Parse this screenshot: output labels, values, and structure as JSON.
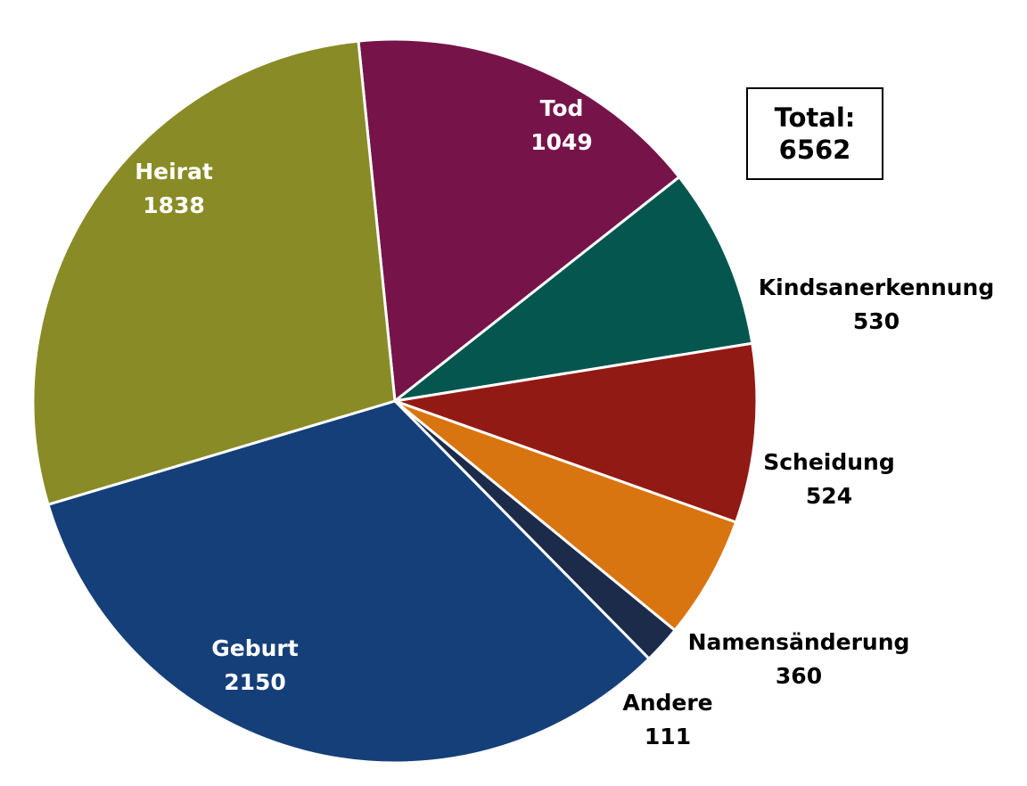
{
  "chart_data": {
    "type": "pie",
    "total_label": "Total:",
    "total_value": "6562",
    "slices": [
      {
        "label": "Tod",
        "value": 1049,
        "color": "#76144a",
        "label_color": "#ffffff",
        "label_placement": "inside"
      },
      {
        "label": "Kindsanerkennung",
        "value": 530,
        "color": "#04564f",
        "label_color": "#000000",
        "label_placement": "outside"
      },
      {
        "label": "Scheidung",
        "value": 524,
        "color": "#921a14",
        "label_color": "#000000",
        "label_placement": "outside"
      },
      {
        "label": "Namensänderung",
        "value": 360,
        "color": "#d97510",
        "label_color": "#000000",
        "label_placement": "outside"
      },
      {
        "label": "Andere",
        "value": 111,
        "color": "#1c2b4a",
        "label_color": "#000000",
        "label_placement": "outside"
      },
      {
        "label": "Geburt",
        "value": 2150,
        "color": "#153f79",
        "label_color": "#ffffff",
        "label_placement": "inside"
      },
      {
        "label": "Heirat",
        "value": 1838,
        "color": "#898b26",
        "label_color": "#ffffff",
        "label_placement": "inside"
      }
    ]
  }
}
